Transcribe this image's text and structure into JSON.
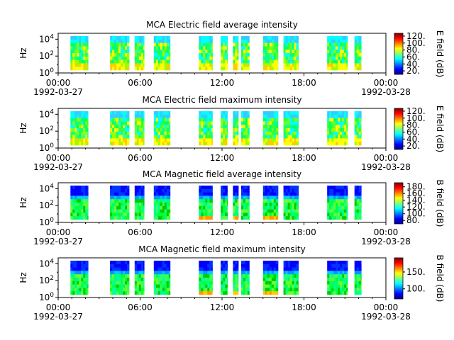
{
  "chart_data": [
    {
      "type": "heatmap",
      "title": "MCA  Electric field average intensity",
      "ylabel": "Hz",
      "colorbar_label": "E field (dB)",
      "colorbar_ticks": [
        "120.",
        "100.",
        "80.",
        "60.",
        "40.",
        "20."
      ],
      "colorbar_range": [
        10,
        128
      ],
      "yticks": [
        "10^4",
        "10^2",
        "10^0"
      ],
      "yscale": "log",
      "xticks": [
        "00:00",
        "06:00",
        "12:00",
        "18:00",
        "00:00"
      ],
      "xdates": [
        "1992-03-27",
        "",
        "",
        "",
        "1992-03-28"
      ],
      "xrange": [
        "1992-03-27 00:00",
        "1992-03-28 00:00"
      ],
      "data_hours": [
        [
          0.9,
          2.2
        ],
        [
          3.8,
          5.2
        ],
        [
          5.6,
          6.3
        ],
        [
          7.0,
          8.2
        ],
        [
          10.3,
          11.3
        ],
        [
          11.9,
          12.4
        ],
        [
          12.8,
          13.2
        ],
        [
          13.4,
          14.0
        ],
        [
          15.0,
          16.1
        ],
        [
          16.5,
          17.6
        ],
        [
          19.7,
          21.2
        ],
        [
          21.7,
          22.2
        ]
      ],
      "colormap": "jet",
      "palette": "efield"
    },
    {
      "type": "heatmap",
      "title": "MCA  Electric field maximum intensity",
      "ylabel": "Hz",
      "colorbar_label": "E field (dB)",
      "colorbar_ticks": [
        "120.",
        "100.",
        "80.",
        "60.",
        "40.",
        "20."
      ],
      "colorbar_range": [
        10,
        128
      ],
      "yticks": [
        "10^4",
        "10^2",
        "10^0"
      ],
      "yscale": "log",
      "xticks": [
        "00:00",
        "06:00",
        "12:00",
        "18:00",
        "00:00"
      ],
      "xdates": [
        "1992-03-27",
        "",
        "",
        "",
        "1992-03-28"
      ],
      "xrange": [
        "1992-03-27 00:00",
        "1992-03-28 00:00"
      ],
      "data_hours": [
        [
          0.9,
          2.2
        ],
        [
          3.8,
          5.2
        ],
        [
          5.6,
          6.3
        ],
        [
          7.0,
          8.2
        ],
        [
          10.3,
          11.3
        ],
        [
          11.9,
          12.4
        ],
        [
          12.8,
          13.2
        ],
        [
          13.4,
          14.0
        ],
        [
          15.0,
          16.1
        ],
        [
          16.5,
          17.6
        ],
        [
          19.7,
          21.2
        ],
        [
          21.7,
          22.2
        ]
      ],
      "colormap": "jet",
      "palette": "efield"
    },
    {
      "type": "heatmap",
      "title": "MCA  Magnetic field average intensity",
      "ylabel": "Hz",
      "colorbar_label": "B field (dB)",
      "colorbar_ticks": [
        "180.",
        "160.",
        "140.",
        "120.",
        "100.",
        "80."
      ],
      "colorbar_range": [
        70,
        192
      ],
      "yticks": [
        "10^4",
        "10^2",
        "10^0"
      ],
      "yscale": "log",
      "xticks": [
        "00:00",
        "06:00",
        "12:00",
        "18:00",
        "00:00"
      ],
      "xdates": [
        "1992-03-27",
        "",
        "",
        "",
        "1992-03-28"
      ],
      "xrange": [
        "1992-03-27 00:00",
        "1992-03-28 00:00"
      ],
      "data_hours": [
        [
          0.9,
          2.2
        ],
        [
          3.8,
          5.2
        ],
        [
          5.6,
          6.3
        ],
        [
          7.0,
          8.2
        ],
        [
          10.3,
          11.3
        ],
        [
          11.9,
          12.4
        ],
        [
          12.8,
          13.2
        ],
        [
          13.4,
          14.0
        ],
        [
          15.0,
          16.1
        ],
        [
          16.5,
          17.6
        ],
        [
          19.7,
          21.2
        ],
        [
          21.7,
          22.2
        ]
      ],
      "colormap": "jet",
      "palette": "bfield"
    },
    {
      "type": "heatmap",
      "title": "MCA  Magnetic field maximum intensity",
      "ylabel": "Hz",
      "colorbar_label": "B field (dB)",
      "colorbar_ticks": [
        "150.",
        "100."
      ],
      "colorbar_range": [
        70,
        192
      ],
      "yticks": [
        "10^4",
        "10^2",
        "10^0"
      ],
      "yscale": "log",
      "xticks": [
        "00:00",
        "06:00",
        "12:00",
        "18:00",
        "00:00"
      ],
      "xdates": [
        "1992-03-27",
        "",
        "",
        "",
        "1992-03-28"
      ],
      "xrange": [
        "1992-03-27 00:00",
        "1992-03-28 00:00"
      ],
      "data_hours": [
        [
          0.9,
          2.2
        ],
        [
          3.8,
          5.2
        ],
        [
          5.6,
          6.3
        ],
        [
          7.0,
          8.2
        ],
        [
          10.3,
          11.3
        ],
        [
          11.9,
          12.4
        ],
        [
          12.8,
          13.2
        ],
        [
          13.4,
          14.0
        ],
        [
          15.0,
          16.1
        ],
        [
          16.5,
          17.6
        ],
        [
          19.7,
          21.2
        ],
        [
          21.7,
          22.2
        ]
      ],
      "colormap": "jet",
      "palette": "bfield"
    }
  ]
}
